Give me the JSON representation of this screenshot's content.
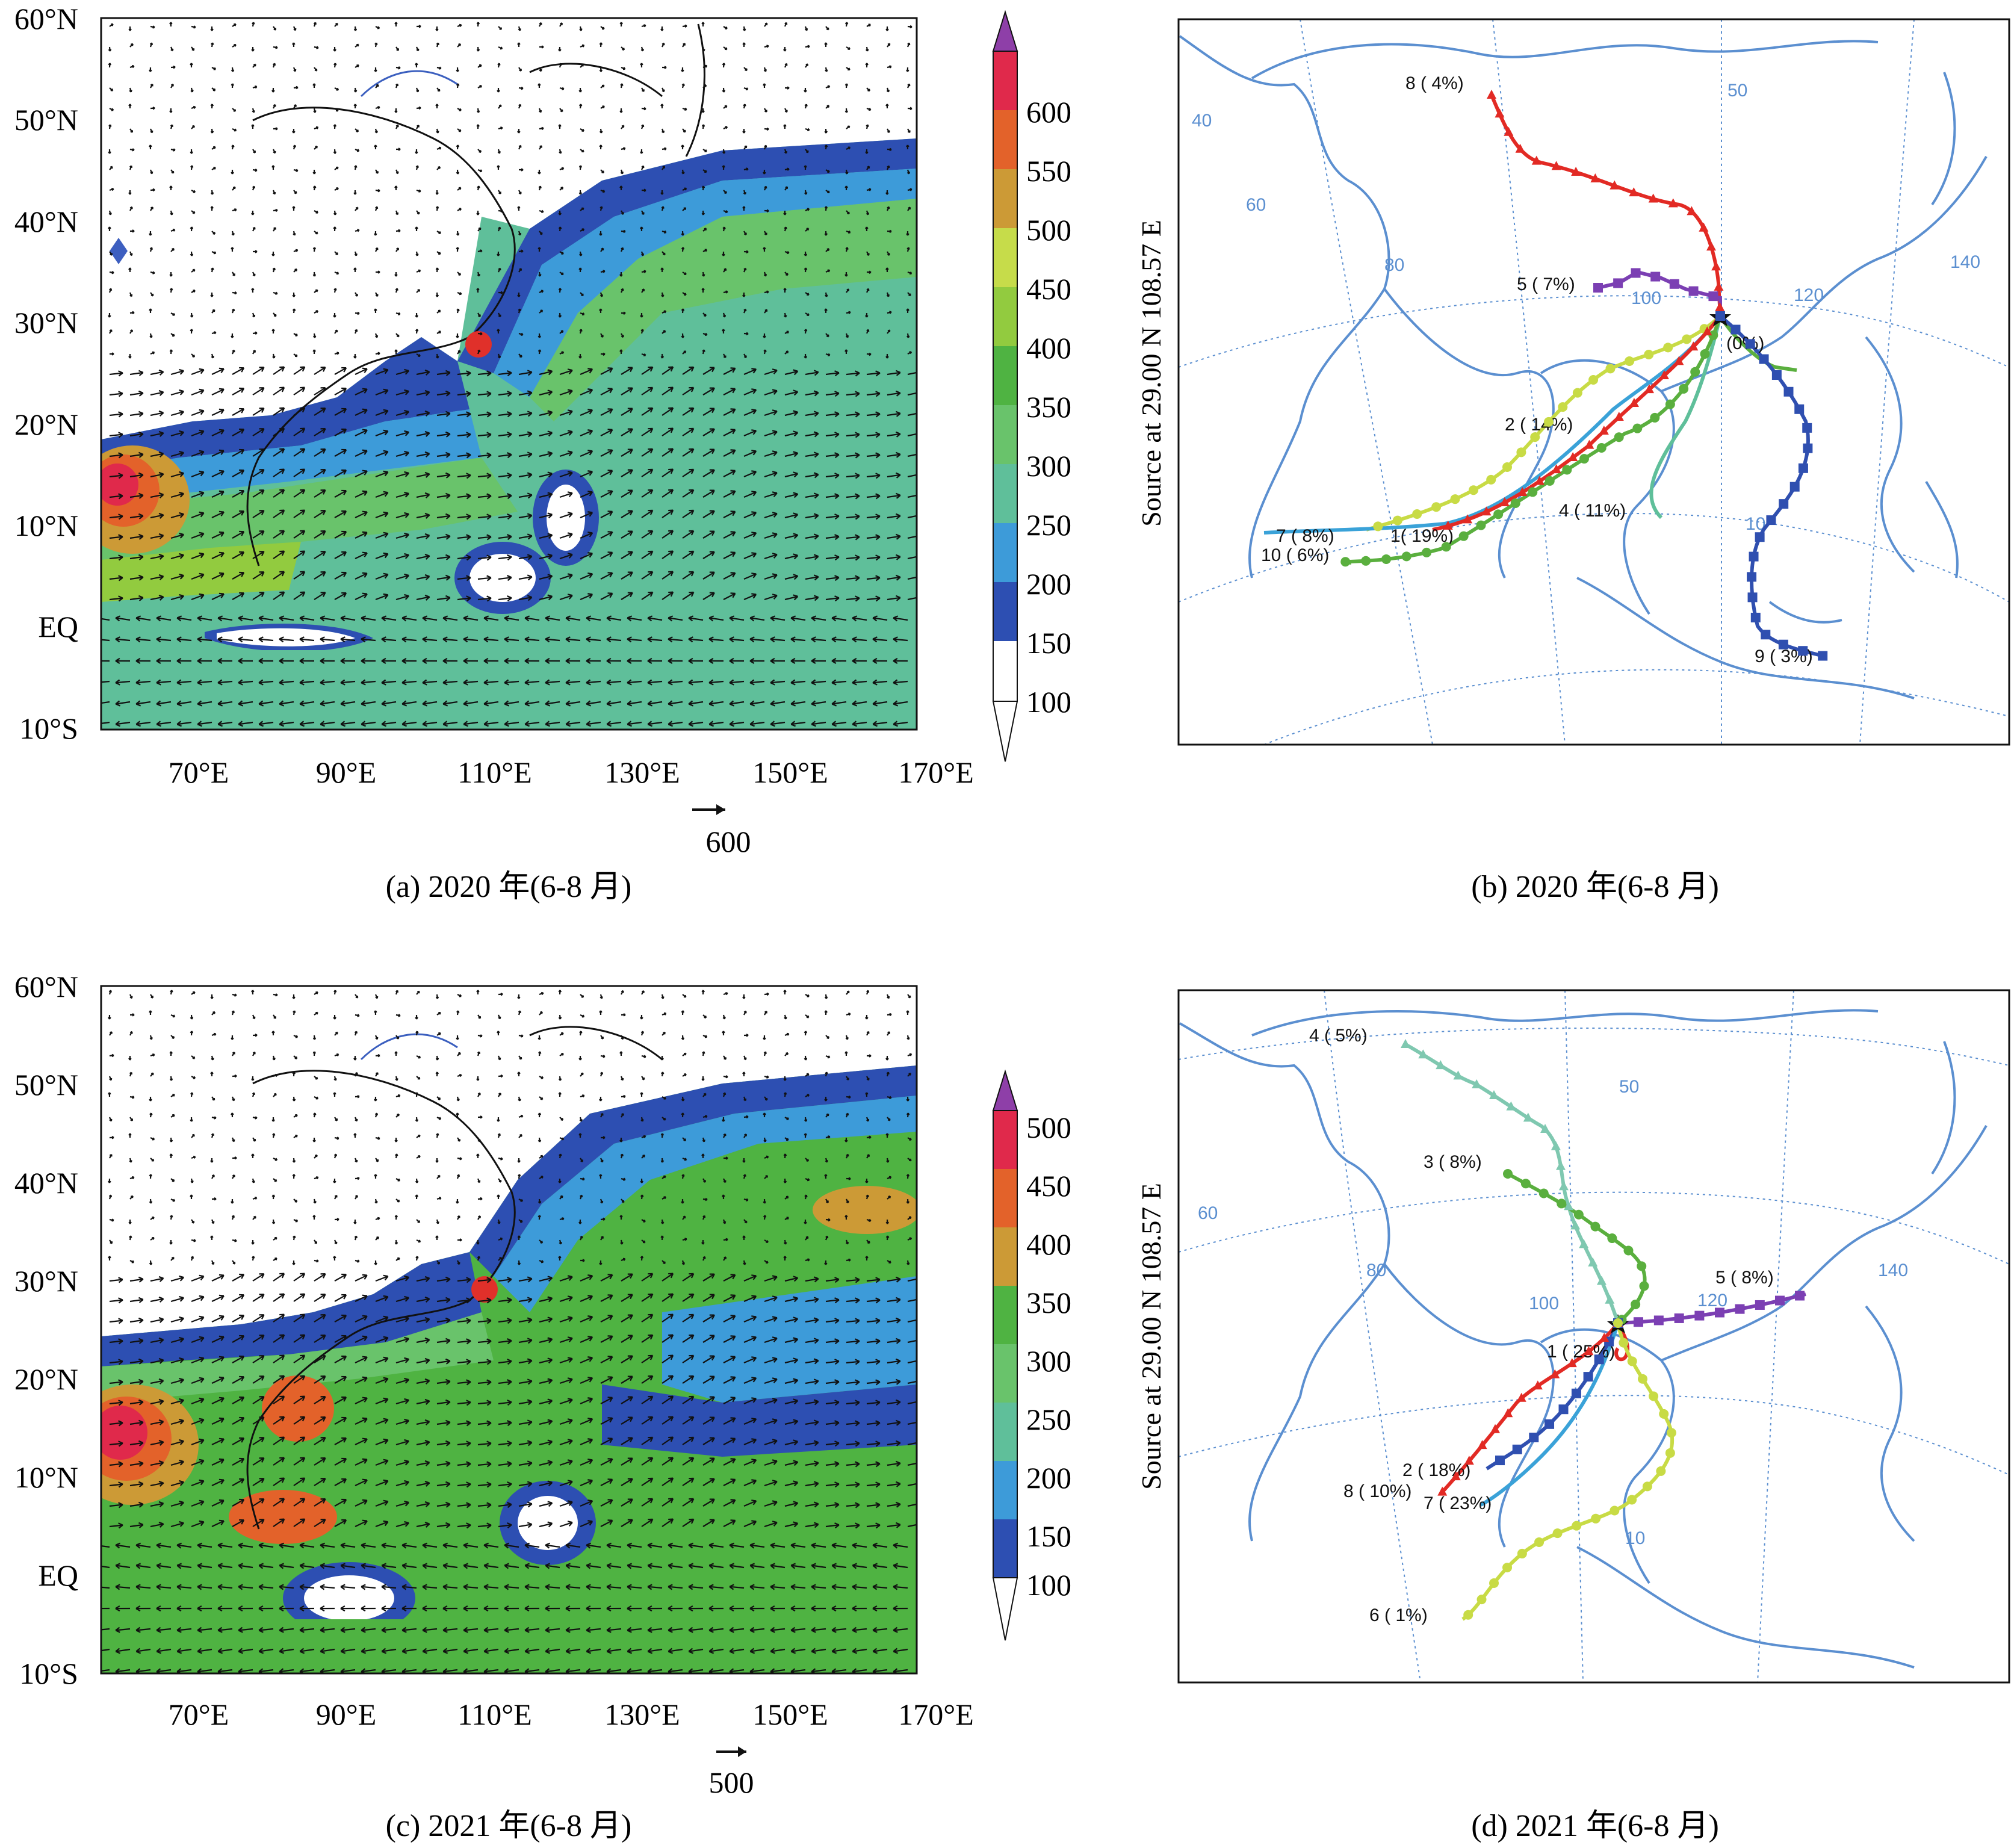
{
  "panels": {
    "a": {
      "caption": "(a) 2020 年(6-8 月)",
      "lat_labels": [
        "60°N",
        "50°N",
        "40°N",
        "30°N",
        "20°N",
        "10°N",
        "EQ",
        "10°S"
      ],
      "lon_labels": [
        "70°E",
        "90°E",
        "110°E",
        "130°E",
        "150°E",
        "170°E"
      ],
      "colorbar_levels": [
        "600",
        "550",
        "500",
        "450",
        "400",
        "350",
        "300",
        "250",
        "200",
        "150",
        "100"
      ],
      "ref_vector_label": "600"
    },
    "b": {
      "caption": "(b) 2020 年(6-8 月)",
      "side_label": "Source at 29.00 N 108.57 E",
      "grid_labels": [
        "50",
        "40",
        "60",
        "80",
        "100",
        "120",
        "140",
        "10"
      ],
      "trajectories": [
        {
          "label": "8 ( 4%)",
          "color": "#e22a24"
        },
        {
          "label": "5 ( 7%)",
          "color": "#7b3fb3"
        },
        {
          "label": "2 ( 14%)",
          "color": "#c8db45"
        },
        {
          "label": "4 ( 11%)",
          "color": "#5aaf3e"
        },
        {
          "label": "7 ( 8%)",
          "color": "#3aa2d8"
        },
        {
          "label": "1( 19%)",
          "color": "#e22a24"
        },
        {
          "label": "10 ( 6%)",
          "color": "#5aaf3e"
        },
        {
          "label": "(0%)",
          "color": "#5aaf3e"
        },
        {
          "label": "9 ( 3%)",
          "color": "#2f4fb0"
        }
      ]
    },
    "c": {
      "caption": "(c) 2021 年(6-8 月)",
      "lat_labels": [
        "60°N",
        "50°N",
        "40°N",
        "30°N",
        "20°N",
        "10°N",
        "EQ",
        "10°S"
      ],
      "lon_labels": [
        "70°E",
        "90°E",
        "110°E",
        "130°E",
        "150°E",
        "170°E"
      ],
      "colorbar_levels": [
        "500",
        "450",
        "400",
        "350",
        "300",
        "250",
        "200",
        "150",
        "100"
      ],
      "ref_vector_label": "500"
    },
    "d": {
      "caption": "(d) 2021 年(6-8 月)",
      "side_label": "Source at 29.00 N 108.57 E",
      "grid_labels": [
        "50",
        "60",
        "80",
        "100",
        "120",
        "140",
        "10"
      ],
      "trajectories": [
        {
          "label": "4 ( 5%)",
          "color": "#7fc8b0"
        },
        {
          "label": "3 ( 8%)",
          "color": "#5aaf3e"
        },
        {
          "label": "5 ( 8%)",
          "color": "#7b3fb3"
        },
        {
          "label": "1 ( 25%)",
          "color": "#e22a24"
        },
        {
          "label": "2 ( 18%)",
          "color": "#2f4fb0"
        },
        {
          "label": "8 ( 10%)",
          "color": "#e22a24"
        },
        {
          "label": "7 ( 23%)",
          "color": "#3aa2d8"
        },
        {
          "label": "6 ( 1%)",
          "color": "#c8db45"
        }
      ]
    }
  },
  "colors": {
    "level_100": "#2d4fb2",
    "level_150": "#3d9bd9",
    "level_200": "#5fbf9a",
    "level_250": "#69c36b",
    "level_300": "#4fb342",
    "level_350": "#92cb3f",
    "level_400": "#c6dc4a",
    "level_450": "#cc9a36",
    "level_500": "#e3622a",
    "level_550": "#e0294b",
    "level_600": "#8e3fa8",
    "coast": "#5b8fd0",
    "grid": "#5b8fd0",
    "land_line": "#111111"
  }
}
